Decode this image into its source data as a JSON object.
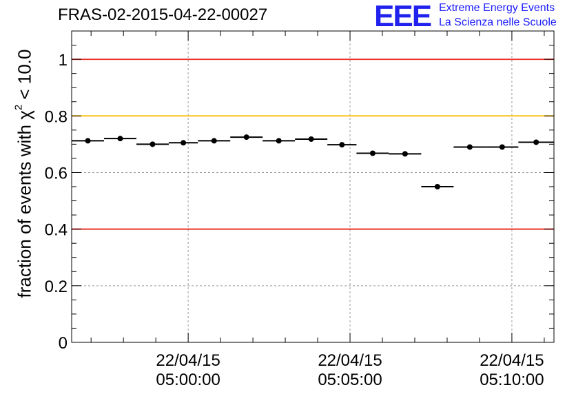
{
  "title": "FRAS-02-2015-04-22-00027",
  "logo": {
    "letters": "EEE",
    "line1": "Extreme Energy Events",
    "line2": "La Scienza nelle Scuole",
    "color": "#2222ee"
  },
  "chart_data": {
    "type": "scatter",
    "title": "FRAS-02-2015-04-22-00027",
    "xlabel": "",
    "ylabel_prefix": "fraction of events with ",
    "ylabel_symbol": "χ",
    "ylabel_power": "2",
    "ylabel_suffix": " < 10.0",
    "ylim": [
      0,
      1.1
    ],
    "xlim_minutes": [
      -3.6,
      11.3
    ],
    "y_ticks": [
      "0",
      "0.2",
      "0.4",
      "0.6",
      "0.8",
      "1"
    ],
    "y_tick_values": [
      0,
      0.2,
      0.4,
      0.6,
      0.8,
      1.0
    ],
    "x_ticks": [
      {
        "date": "22/04/15",
        "time": "05:00:00",
        "minute": 0
      },
      {
        "date": "22/04/15",
        "time": "05:05:00",
        "minute": 5
      },
      {
        "date": "22/04/15",
        "time": "05:10:00",
        "minute": 10
      }
    ],
    "grid": true,
    "reference_lines": [
      {
        "y": 1.0,
        "color": "#e8322a"
      },
      {
        "y": 0.8,
        "color": "#ffc21a"
      },
      {
        "y": 0.4,
        "color": "#e8322a"
      }
    ],
    "points": [
      {
        "x_start": -3.6,
        "x_end": -2.6,
        "x": -3.1,
        "y": 0.712
      },
      {
        "x_start": -2.6,
        "x_end": -1.6,
        "x": -2.1,
        "y": 0.72
      },
      {
        "x_start": -1.6,
        "x_end": -0.6,
        "x": -1.1,
        "y": 0.7
      },
      {
        "x_start": -0.6,
        "x_end": 0.3,
        "x": -0.15,
        "y": 0.705
      },
      {
        "x_start": 0.3,
        "x_end": 1.3,
        "x": 0.8,
        "y": 0.712
      },
      {
        "x_start": 1.3,
        "x_end": 2.3,
        "x": 1.8,
        "y": 0.725
      },
      {
        "x_start": 2.3,
        "x_end": 3.3,
        "x": 2.8,
        "y": 0.712
      },
      {
        "x_start": 3.3,
        "x_end": 4.3,
        "x": 3.8,
        "y": 0.718
      },
      {
        "x_start": 4.3,
        "x_end": 5.2,
        "x": 4.75,
        "y": 0.698
      },
      {
        "x_start": 5.2,
        "x_end": 6.2,
        "x": 5.7,
        "y": 0.668
      },
      {
        "x_start": 6.2,
        "x_end": 7.2,
        "x": 6.7,
        "y": 0.666
      },
      {
        "x_start": 7.2,
        "x_end": 8.2,
        "x": 7.7,
        "y": 0.55
      },
      {
        "x_start": 8.2,
        "x_end": 9.2,
        "x": 8.7,
        "y": 0.69
      },
      {
        "x_start": 9.2,
        "x_end": 10.2,
        "x": 9.7,
        "y": 0.69
      },
      {
        "x_start": 10.2,
        "x_end": 11.3,
        "x": 10.75,
        "y": 0.707
      }
    ]
  }
}
